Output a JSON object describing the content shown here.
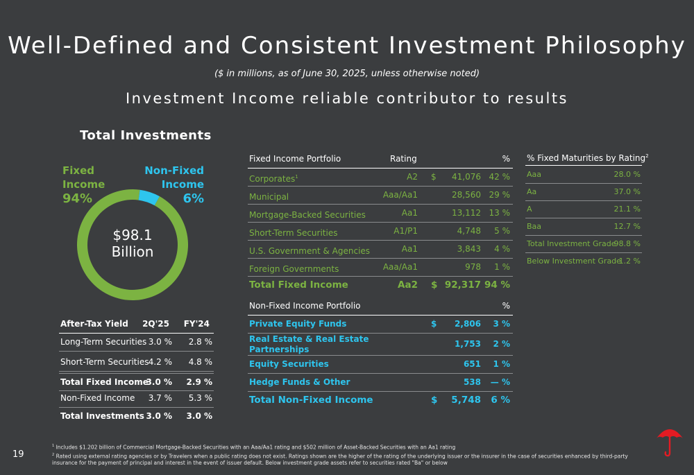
{
  "header": {
    "title": "Well-Defined and Consistent Investment Philosophy",
    "subtitle": "($ in millions, as of June 30, 2025, unless otherwise noted)",
    "headline": "Investment Income reliable contributor to results"
  },
  "total_investments": {
    "section_title": "Total Investments",
    "fixed_label_1": "Fixed",
    "fixed_label_2": "Income",
    "fixed_pct": "94%",
    "nonfixed_label_1": "Non-Fixed",
    "nonfixed_label_2": "Income",
    "nonfixed_pct": "6%",
    "center_value": "$98.1",
    "center_unit": "Billion",
    "colors": {
      "fixed": "#7cb342",
      "nonfixed": "#2ec5ee"
    }
  },
  "chart_data": {
    "type": "pie",
    "categories": [
      "Fixed Income",
      "Non-Fixed Income"
    ],
    "values": [
      94,
      6
    ],
    "title": "Total Investments"
  },
  "yield_table": {
    "headers": [
      "After-Tax Yield",
      "2Q'25",
      "FY'24"
    ],
    "rows": [
      {
        "label": "Long-Term Securities",
        "q": "3.0 %",
        "fy": "2.8 %"
      },
      {
        "label": "Short-Term Securities",
        "q": "4.2 %",
        "fy": "4.8 %"
      },
      {
        "label": "Total Fixed Income",
        "q": "3.0 %",
        "fy": "2.9 %"
      },
      {
        "label": "Non-Fixed Income",
        "q": "3.7 %",
        "fy": "5.3 %"
      },
      {
        "label": "Total Investments",
        "q": "3.0 %",
        "fy": "3.0 %"
      }
    ]
  },
  "fixed_table": {
    "headers": [
      "Fixed Income Portfolio",
      "Rating",
      "%"
    ],
    "rows": [
      {
        "label": "Corporates",
        "sup": "1",
        "rating": "A2",
        "dollar": "$",
        "value": "41,076",
        "pct": "42 %"
      },
      {
        "label": "Municipal",
        "sup": "",
        "rating": "Aaa/Aa1",
        "dollar": "",
        "value": "28,560",
        "pct": "29 %"
      },
      {
        "label": "Mortgage-Backed Securities",
        "sup": "",
        "rating": "Aa1",
        "dollar": "",
        "value": "13,112",
        "pct": "13 %"
      },
      {
        "label": "Short-Term Securities",
        "sup": "",
        "rating": "A1/P1",
        "dollar": "",
        "value": "4,748",
        "pct": "5 %"
      },
      {
        "label": "U.S. Government & Agencies",
        "sup": "",
        "rating": "Aa1",
        "dollar": "",
        "value": "3,843",
        "pct": "4 %"
      },
      {
        "label": "Foreign Governments",
        "sup": "",
        "rating": "Aaa/Aa1",
        "dollar": "",
        "value": "978",
        "pct": "1 %"
      }
    ],
    "total": {
      "label": "Total Fixed Income",
      "rating": "Aa2",
      "dollar": "$",
      "value": "92,317",
      "pct": "94 %"
    }
  },
  "nonfixed_table": {
    "headers": [
      "Non-Fixed Income Portfolio",
      "%"
    ],
    "rows": [
      {
        "label": "Private Equity Funds",
        "dollar": "$",
        "value": "2,806",
        "pct": "3 %"
      },
      {
        "label_1": "Real Estate & Real Estate",
        "label_2": "Partnerships",
        "dollar": "",
        "value": "1,753",
        "pct": "2 %"
      },
      {
        "label": "Equity Securities",
        "dollar": "",
        "value": "651",
        "pct": "1 %"
      },
      {
        "label": "Hedge Funds & Other",
        "dollar": "",
        "value": "538",
        "pct": "— %"
      }
    ],
    "total": {
      "label": "Total Non-Fixed Income",
      "dollar": "$",
      "value": "5,748",
      "pct": "6 %"
    }
  },
  "maturities_table": {
    "header": "% Fixed Maturities by Rating",
    "header_sup": "2",
    "rows": [
      {
        "label": "Aaa",
        "pct": "28.0 %"
      },
      {
        "label": "Aa",
        "pct": "37.0 %"
      },
      {
        "label": "A",
        "pct": "21.1 %"
      },
      {
        "label": "Baa",
        "pct": "12.7 %"
      },
      {
        "label": "Total Investment Grade",
        "pct": "98.8 %"
      },
      {
        "label": "Below Investment Grade",
        "pct": "1.2 %"
      }
    ]
  },
  "footer": {
    "page_number": "19",
    "note1_sup": "1",
    "note1": "Includes $1.202 billion of Commercial Mortgage-Backed Securities with an Aaa/Aa1 rating and $502 million of Asset-Backed Securities with an Aa1 rating",
    "note2_sup": "2",
    "note2": "Rated using external rating agencies or by Travelers when a public rating does not exist. Ratings shown are the higher of the rating of the underlying issuer or the insurer in the case of securities enhanced by third-party insurance for the payment of principal and interest in the event of issuer default. Below investment grade assets refer to securities rated \"Ba\" or below",
    "logo_icon": "umbrella-icon",
    "logo_color": "#e31b23"
  }
}
